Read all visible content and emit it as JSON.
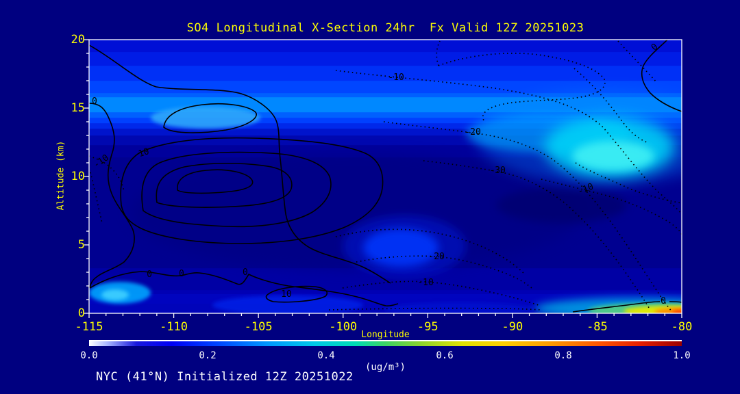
{
  "page": {
    "background": "#000080",
    "accent_text": "#ffff00",
    "light_text": "#ffffff"
  },
  "header": {
    "title": "SO4 Longitudinal X-Section 24hr  Fx Valid 12Z 20251023"
  },
  "footer": {
    "text": "NYC (41°N) Initialized 12Z 20251022"
  },
  "chart_data": {
    "type": "heatmap",
    "title": "SO4 Longitudinal X-Section 24hr  Fx Valid 12Z 20251023",
    "xlabel": "Longitude",
    "ylabel": "Altitude (km)",
    "xlim": [
      -115,
      -80
    ],
    "ylim": [
      0,
      20
    ],
    "x_ticks": [
      -115,
      -110,
      -105,
      -100,
      -95,
      -90,
      -85,
      -80
    ],
    "y_ticks": [
      0,
      5,
      10,
      15,
      20
    ],
    "grid": false,
    "legend_position": "bottom-colorbar",
    "field_name": "SO4 concentration",
    "field_units": "ug/m3",
    "field_grid": {
      "longitudes": [
        -115,
        -110,
        -105,
        -100,
        -95,
        -90,
        -85,
        -80
      ],
      "altitudes_km": [
        19,
        17,
        15,
        13,
        10,
        7,
        4,
        1
      ],
      "values_ug_m3": [
        [
          0.13,
          0.13,
          0.14,
          0.14,
          0.15,
          0.15,
          0.14,
          0.13
        ],
        [
          0.2,
          0.2,
          0.21,
          0.22,
          0.22,
          0.23,
          0.24,
          0.22
        ],
        [
          0.27,
          0.3,
          0.28,
          0.28,
          0.28,
          0.3,
          0.36,
          0.3
        ],
        [
          0.15,
          0.16,
          0.14,
          0.13,
          0.15,
          0.22,
          0.33,
          0.26
        ],
        [
          0.08,
          0.06,
          0.06,
          0.07,
          0.07,
          0.08,
          0.12,
          0.1
        ],
        [
          0.08,
          0.07,
          0.07,
          0.1,
          0.14,
          0.09,
          0.08,
          0.08
        ],
        [
          0.09,
          0.08,
          0.09,
          0.1,
          0.16,
          0.1,
          0.09,
          0.1
        ],
        [
          0.12,
          0.15,
          0.13,
          0.12,
          0.11,
          0.1,
          0.18,
          0.6
        ]
      ]
    },
    "overlay_contours": {
      "solid_line_values": [
        0,
        10
      ],
      "dotted_line_values": [
        -10,
        -20,
        -30
      ],
      "labels": [
        {
          "text": "0",
          "lon": -114.68,
          "km": 15.5,
          "rot": 0
        },
        {
          "text": "-10",
          "lon": -114.2,
          "km": 11.15,
          "rot": -35
        },
        {
          "text": "10",
          "lon": -111.72,
          "km": 11.75,
          "rot": -18
        },
        {
          "text": "-10",
          "lon": -96.87,
          "km": 17.25,
          "rot": 0
        },
        {
          "text": "-20",
          "lon": -92.34,
          "km": 13.25,
          "rot": 0
        },
        {
          "text": "-30",
          "lon": -90.88,
          "km": 10.45,
          "rot": 0
        },
        {
          "text": "-10",
          "lon": -85.62,
          "km": 9.1,
          "rot": -22
        },
        {
          "text": "-20",
          "lon": -94.48,
          "km": 4.15,
          "rot": 0
        },
        {
          "text": "-10",
          "lon": -95.13,
          "km": 2.25,
          "rot": 0
        },
        {
          "text": "0",
          "lon": -111.44,
          "km": 2.85,
          "rot": 0
        },
        {
          "text": "0",
          "lon": -109.54,
          "km": 2.9,
          "rot": 0
        },
        {
          "text": "0",
          "lon": -105.78,
          "km": 3.0,
          "rot": 0
        },
        {
          "text": "10",
          "lon": -103.35,
          "km": 1.4,
          "rot": 0
        },
        {
          "text": "0",
          "lon": -81.09,
          "km": 0.9,
          "rot": 0
        },
        {
          "text": "0",
          "lon": -81.5,
          "km": 19.5,
          "rot": -40
        }
      ]
    },
    "colorbar": {
      "range": [
        0.0,
        1.0
      ],
      "ticks": [
        "0.0",
        "0.2",
        "0.4",
        "0.6",
        "0.8",
        "1.0"
      ],
      "label": "(ug/m³)",
      "stops": [
        {
          "at": 0.0,
          "color": "#ffffff"
        },
        {
          "at": 0.03,
          "color": "#aab8ff"
        },
        {
          "at": 0.08,
          "color": "#1818dd"
        },
        {
          "at": 0.14,
          "color": "#0000f5"
        },
        {
          "at": 0.22,
          "color": "#0048ff"
        },
        {
          "at": 0.3,
          "color": "#0096ff"
        },
        {
          "at": 0.38,
          "color": "#00c8e8"
        },
        {
          "at": 0.45,
          "color": "#00dcb4"
        },
        {
          "at": 0.5,
          "color": "#3cd264"
        },
        {
          "at": 0.56,
          "color": "#8cd22d"
        },
        {
          "at": 0.63,
          "color": "#e0e000"
        },
        {
          "at": 0.7,
          "color": "#ffcc00"
        },
        {
          "at": 0.78,
          "color": "#ff9900"
        },
        {
          "at": 0.86,
          "color": "#ff5500"
        },
        {
          "at": 0.93,
          "color": "#e61e00"
        },
        {
          "at": 1.0,
          "color": "#990000"
        }
      ]
    }
  }
}
